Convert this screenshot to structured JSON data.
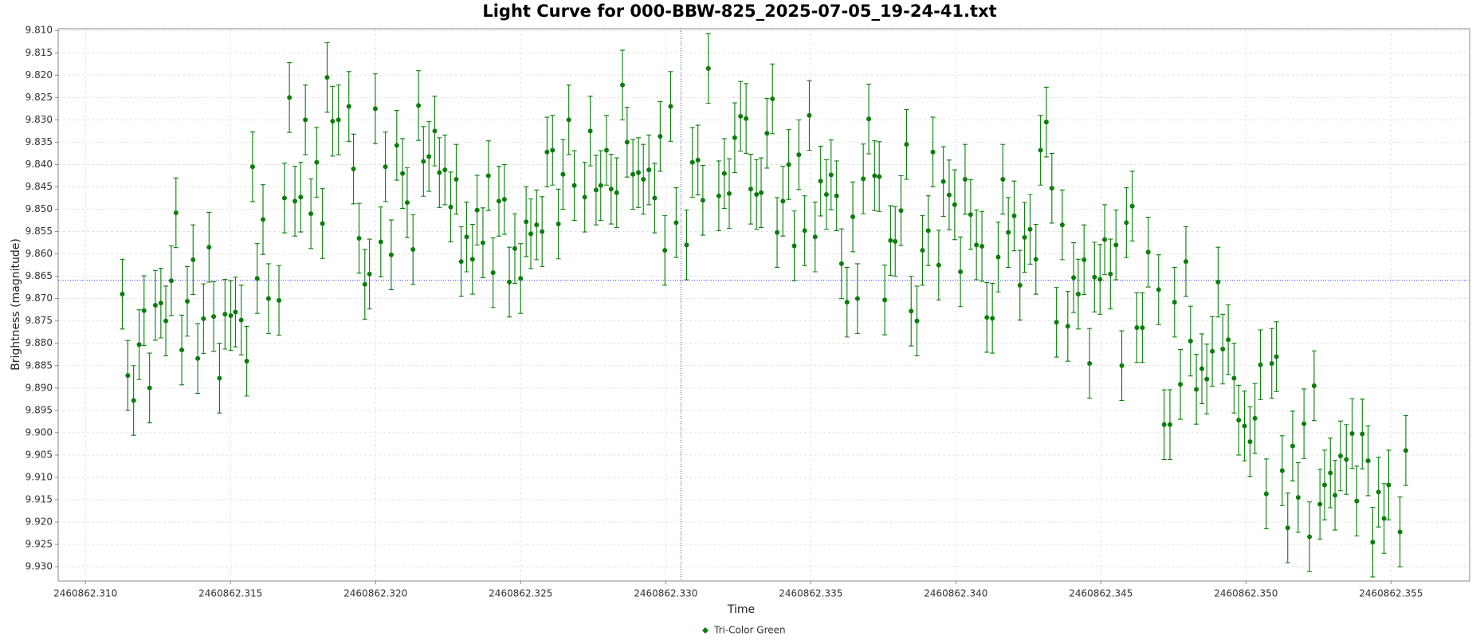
{
  "chart_data": {
    "type": "scatter",
    "title": "Light Curve for 000-BBW-825_2025-07-05_19-24-41.txt",
    "x_label": "Time",
    "y_label": "Brightness (magnitude)",
    "xlim": [
      2460862.30906,
      2460862.35771
    ],
    "ylim": [
      9.9332,
      9.8096
    ],
    "xticks": [
      {
        "value": 2460862.31,
        "label": "2460862.310"
      },
      2460862.315,
      {
        "value": 2460862.32,
        "label": "2460862.320"
      },
      2460862.325,
      {
        "value": 2460862.33,
        "label": "2460862.330"
      },
      2460862.335,
      {
        "value": 2460862.34,
        "label": "2460862.340"
      },
      2460862.345,
      {
        "value": 2460862.35,
        "label": "2460862.350"
      },
      2460862.355
    ],
    "yticks": [
      {
        "value": 9.81,
        "label": "9.810"
      },
      9.815,
      {
        "value": 9.82,
        "label": "9.820"
      },
      9.825,
      {
        "value": 9.83,
        "label": "9.830"
      },
      9.835,
      {
        "value": 9.84,
        "label": "9.840"
      },
      9.845,
      {
        "value": 9.85,
        "label": "9.850"
      },
      9.855,
      {
        "value": 9.86,
        "label": "9.860"
      },
      9.865,
      {
        "value": 9.87,
        "label": "9.870"
      },
      9.875,
      {
        "value": 9.88,
        "label": "9.880"
      },
      9.885,
      {
        "value": 9.89,
        "label": "9.890"
      },
      9.895,
      {
        "value": 9.9,
        "label": "9.900"
      },
      9.905,
      {
        "value": 9.91,
        "label": "9.910"
      },
      9.915,
      {
        "value": 9.92,
        "label": "9.920"
      },
      9.925,
      {
        "value": 9.93,
        "label": "9.930"
      }
    ],
    "grid": true,
    "crosshair": {
      "x": 2460862.33053,
      "y": 9.8659,
      "color": "#3b3bff"
    },
    "legend": "bottom",
    "series": [
      {
        "name": "Tri-Color Green",
        "color": "#0b7d0b",
        "error": 0.0078,
        "x": [
          2460862.31127,
          2460862.31146,
          2460862.31166,
          2460862.31185,
          2460862.31202,
          2460862.31221,
          2460862.31241,
          2460862.3126,
          2460862.31277,
          2460862.31296,
          2460862.31312,
          2460862.31332,
          2460862.31351,
          2460862.31371,
          2460862.31387,
          2460862.31407,
          2460862.31426,
          2460862.31442,
          2460862.31462,
          2460862.31481,
          2460862.31501,
          2460862.31517,
          2460862.31537,
          2460862.31556,
          2460862.31576,
          2460862.31592,
          2460862.31612,
          2460862.31631,
          2460862.31667,
          2460862.31686,
          2460862.31703,
          2460862.31722,
          2460862.31742,
          2460862.31758,
          2460862.31777,
          2460862.31797,
          2460862.31817,
          2460862.31833,
          2460862.31852,
          2460862.31872,
          2460862.31908,
          2460862.31924,
          2460862.31943,
          2460862.31963,
          2460862.31979,
          2460862.31999,
          2460862.32018,
          2460862.32034,
          2460862.32054,
          2460862.32073,
          2460862.32093,
          2460862.32109,
          2460862.32129,
          2460862.32148,
          2460862.32165,
          2460862.32184,
          2460862.32204,
          2460862.3222,
          2460862.32239,
          2460862.32259,
          2460862.32278,
          2460862.32295,
          2460862.32314,
          2460862.32334,
          2460862.3235,
          2460862.3237,
          2460862.32389,
          2460862.32405,
          2460862.32425,
          2460862.32444,
          2460862.32461,
          2460862.3248,
          2460862.325,
          2460862.32519,
          2460862.32535,
          2460862.32555,
          2460862.32574,
          2460862.32591,
          2460862.3261,
          2460862.3263,
          2460862.32646,
          2460862.32666,
          2460862.32685,
          2460862.32721,
          2460862.3274,
          2460862.3276,
          2460862.32776,
          2460862.32796,
          2460862.32812,
          2460862.32831,
          2460862.32851,
          2460862.32867,
          2460862.32887,
          2460862.32906,
          2460862.32923,
          2460862.32942,
          2460862.32962,
          2460862.32981,
          2460862.32997,
          2460862.33017,
          2460862.33036,
          2460862.33072,
          2460862.33092,
          2460862.33111,
          2460862.33128,
          2460862.33147,
          2460862.33183,
          2460862.33202,
          2460862.33219,
          2460862.33238,
          2460862.33258,
          2460862.33277,
          2460862.33293,
          2460862.33313,
          2460862.33329,
          2460862.33349,
          2460862.33368,
          2460862.33384,
          2460862.33404,
          2460862.33424,
          2460862.33443,
          2460862.33459,
          2460862.33479,
          2460862.33495,
          2460862.33515,
          2460862.33534,
          2460862.33554,
          2460862.3357,
          2460862.33589,
          2460862.33606,
          2460862.33625,
          2460862.33645,
          2460862.33661,
          2460862.33681,
          2460862.337,
          2460862.3372,
          2460862.33736,
          2460862.33755,
          2460862.33775,
          2460862.33791,
          2460862.33811,
          2460862.3383,
          2460862.33846,
          2460862.33866,
          2460862.33885,
          2460862.33905,
          2460862.33921,
          2460862.33941,
          2460862.33957,
          2460862.33977,
          2460862.33996,
          2460862.34016,
          2460862.34032,
          2460862.34051,
          2460862.34071,
          2460862.3409,
          2460862.34107,
          2460862.34126,
          2460862.34146,
          2460862.34162,
          2460862.34181,
          2460862.34201,
          2460862.34221,
          2460862.34237,
          2460862.34256,
          2460862.34276,
          2460862.34292,
          2460862.34312,
          2460862.34331,
          2460862.34347,
          2460862.34367,
          2460862.34386,
          2460862.34406,
          2460862.34422,
          2460862.34442,
          2460862.34461,
          2460862.34478,
          2460862.34497,
          2460862.34513,
          2460862.34533,
          2460862.34552,
          2460862.34572,
          2460862.34588,
          2460862.34608,
          2460862.34624,
          2460862.34643,
          2460862.34663,
          2460862.34699,
          2460862.34718,
          2460862.34738,
          2460862.34754,
          2460862.34774,
          2460862.34793,
          2460862.34809,
          2460862.34829,
          2460862.34848,
          2460862.34865,
          2460862.34884,
          2460862.34904,
          2460862.3492,
          2460862.34939,
          2460862.34959,
          2460862.34975,
          2460862.34995,
          2460862.35014,
          2460862.35031,
          2460862.3505,
          2460862.3507,
          2460862.35089,
          2460862.35105,
          2460862.35125,
          2460862.35144,
          2460862.35161,
          2460862.3518,
          2460862.352,
          2460862.35219,
          2460862.35235,
          2460862.35255,
          2460862.35271,
          2460862.35291,
          2460862.35307,
          2460862.35326,
          2460862.35346,
          2460862.35366,
          2460862.35382,
          2460862.35401,
          2460862.35421,
          2460862.35437,
          2460862.35457,
          2460862.35476,
          2460862.35492,
          2460862.35531,
          2460862.35551
        ],
        "values": [
          9.869,
          9.8872,
          9.8928,
          9.8803,
          9.8727,
          9.89,
          9.8715,
          9.871,
          9.875,
          9.866,
          9.8508,
          9.8815,
          9.8706,
          9.8613,
          9.8834,
          9.8745,
          9.8585,
          9.874,
          9.8878,
          9.8735,
          9.8738,
          9.873,
          9.8748,
          9.884,
          9.8405,
          9.8655,
          9.8523,
          9.87,
          9.8704,
          9.8475,
          9.825,
          9.8482,
          9.8473,
          9.83,
          9.851,
          9.8395,
          9.8532,
          9.8205,
          9.8303,
          9.83,
          9.827,
          9.841,
          9.8565,
          9.8668,
          9.8645,
          9.8275,
          9.8573,
          9.8405,
          9.8602,
          9.8357,
          9.842,
          9.8485,
          9.859,
          9.8268,
          9.8393,
          9.8382,
          9.8325,
          9.8418,
          9.8412,
          9.8495,
          9.8433,
          9.8617,
          9.8562,
          9.8612,
          9.8502,
          9.8575,
          9.8425,
          9.8642,
          9.8482,
          9.8478,
          9.8663,
          9.8588,
          9.8655,
          9.8528,
          9.8555,
          9.8535,
          9.855,
          9.8372,
          9.8368,
          9.8533,
          9.8422,
          9.83,
          9.8447,
          9.8473,
          9.8325,
          9.8457,
          9.8447,
          9.8368,
          9.8455,
          9.8463,
          9.8222,
          9.835,
          9.8422,
          9.8418,
          9.8433,
          9.8412,
          9.8475,
          9.8337,
          9.8592,
          9.827,
          9.853,
          9.858,
          9.8395,
          9.839,
          9.848,
          9.8185,
          9.847,
          9.842,
          9.8465,
          9.834,
          9.8292,
          9.8297,
          9.8455,
          9.8467,
          9.8463,
          9.833,
          9.8253,
          9.8552,
          9.8482,
          9.84,
          9.8582,
          9.8378,
          9.8548,
          9.829,
          9.8562,
          9.8437,
          9.8467,
          9.8423,
          9.847,
          9.8622,
          9.8708,
          9.8517,
          9.87,
          9.8432,
          9.8298,
          9.8425,
          9.8427,
          9.8703,
          9.857,
          9.8572,
          9.8503,
          9.8355,
          9.8728,
          9.875,
          9.8592,
          9.8548,
          9.8372,
          9.8625,
          9.8438,
          9.8468,
          9.849,
          9.864,
          9.8433,
          9.8512,
          9.858,
          9.8583,
          9.8742,
          9.8744,
          9.8607,
          9.8433,
          9.8552,
          9.8515,
          9.867,
          9.8563,
          9.8545,
          9.8612,
          9.8368,
          9.8305,
          9.8453,
          9.8753,
          9.8535,
          9.8762,
          9.8653,
          9.869,
          9.8613,
          9.8845,
          9.8652,
          9.8657,
          9.8568,
          9.8645,
          9.858,
          9.885,
          9.853,
          9.8493,
          9.8765,
          9.8765,
          9.8596,
          9.868,
          9.8982,
          9.8982,
          9.8708,
          9.8892,
          9.8617,
          9.8795,
          9.8903,
          9.8857,
          9.888,
          9.8818,
          9.8663,
          9.8813,
          9.8792,
          9.8878,
          9.8972,
          9.8985,
          9.902,
          9.8968,
          9.8848,
          9.9137,
          9.8845,
          9.883,
          9.9085,
          9.9213,
          9.903,
          9.9145,
          9.898,
          9.9233,
          9.8895,
          9.916,
          9.9117,
          9.909,
          9.914,
          9.9052,
          9.906,
          9.9002,
          9.9153,
          9.9003,
          9.9063,
          9.9245,
          9.9133,
          9.9192,
          9.9117,
          9.9222,
          9.904
        ]
      }
    ]
  }
}
